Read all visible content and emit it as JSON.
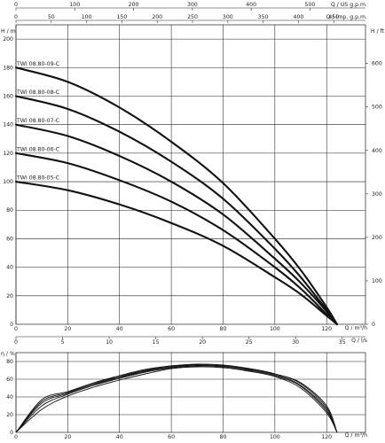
{
  "chart_data": [
    {
      "type": "line",
      "title": "",
      "x_axis_primary": {
        "label": "Q / m³/h",
        "range": [
          0,
          135
        ],
        "ticks": [
          0,
          20,
          40,
          60,
          80,
          100,
          120
        ]
      },
      "x_axis_top_usgpm": {
        "label": "Q / US g.p.m.",
        "range": [
          0,
          594.4
        ],
        "ticks": [
          0,
          100,
          200,
          300,
          400,
          500
        ]
      },
      "x_axis_top_impgpm": {
        "label": "Q / Imp. g.p.m.",
        "range": [
          0,
          494.9
        ],
        "ticks": [
          0,
          50,
          100,
          150,
          200,
          250,
          300,
          350,
          400,
          450
        ]
      },
      "x_axis_mid_ls": {
        "label": "Q / l/s",
        "range": [
          0,
          37.5
        ],
        "ticks": [
          0,
          5,
          10,
          15,
          20,
          25,
          30,
          35
        ]
      },
      "y_axis_left": {
        "label": "H / m",
        "range": [
          0,
          210
        ],
        "ticks": [
          0,
          20,
          40,
          60,
          80,
          100,
          120,
          140,
          160,
          180,
          200
        ]
      },
      "y_axis_right": {
        "label": "H / ft",
        "range": [
          0,
          689
        ],
        "ticks": [
          0,
          100,
          200,
          300,
          400,
          500,
          600
        ]
      },
      "grid": true,
      "series": [
        {
          "name": "TWI 08.80-09-C",
          "x": [
            0,
            20,
            40,
            60,
            80,
            100,
            110,
            120,
            124
          ],
          "y": [
            180,
            170,
            152,
            128,
            99,
            60,
            38,
            12,
            0
          ]
        },
        {
          "name": "TWI 08.80-08-C",
          "x": [
            0,
            20,
            40,
            60,
            80,
            100,
            110,
            120,
            124
          ],
          "y": [
            160,
            151,
            135,
            114,
            88,
            53,
            33,
            10,
            0
          ]
        },
        {
          "name": "TWI 08.80-07-C",
          "x": [
            0,
            20,
            40,
            60,
            80,
            100,
            110,
            120,
            124
          ],
          "y": [
            140,
            132,
            118,
            100,
            77,
            46,
            29,
            9,
            0
          ]
        },
        {
          "name": "TWI 08.80-06-C",
          "x": [
            0,
            20,
            40,
            60,
            80,
            100,
            110,
            120,
            124
          ],
          "y": [
            120,
            113,
            101,
            86,
            66,
            40,
            25,
            7,
            0
          ]
        },
        {
          "name": "TWI 08.80-05-C",
          "x": [
            0,
            20,
            40,
            60,
            80,
            100,
            110,
            120,
            124
          ],
          "y": [
            100,
            94,
            84,
            71,
            55,
            33,
            21,
            6,
            0
          ]
        }
      ]
    },
    {
      "type": "line",
      "title": "",
      "x_axis": {
        "label": "Q / m³/h",
        "range": [
          0,
          135
        ],
        "ticks": [
          0,
          20,
          40,
          60,
          80,
          100,
          120
        ]
      },
      "y_axis": {
        "label": "η / %",
        "range": [
          0,
          90
        ],
        "ticks": [
          0,
          20,
          40,
          60,
          80
        ]
      },
      "grid": true,
      "series": [
        {
          "x": [
            0,
            10,
            20,
            30,
            40,
            50,
            60,
            70,
            80,
            90,
            100,
            110,
            120,
            124
          ],
          "y": [
            0,
            26,
            41,
            51,
            59,
            66,
            72,
            74,
            73,
            69,
            63,
            50,
            22,
            0
          ]
        },
        {
          "x": [
            0,
            10,
            20,
            30,
            40,
            50,
            60,
            70,
            80,
            90,
            100,
            110,
            120,
            124
          ],
          "y": [
            0,
            30,
            43,
            53,
            61,
            68,
            73,
            75,
            74,
            70,
            64,
            52,
            24,
            0
          ]
        },
        {
          "x": [
            0,
            10,
            20,
            30,
            40,
            50,
            60,
            70,
            80,
            90,
            100,
            110,
            120,
            124
          ],
          "y": [
            0,
            33,
            44,
            54,
            62,
            69,
            74,
            76,
            75,
            71,
            65,
            53,
            26,
            0
          ]
        },
        {
          "x": [
            0,
            10,
            20,
            30,
            40,
            50,
            60,
            70,
            80,
            90,
            100,
            110,
            120,
            124
          ],
          "y": [
            0,
            35,
            45,
            55,
            63,
            70,
            75,
            76,
            75,
            72,
            66,
            55,
            28,
            0
          ]
        },
        {
          "x": [
            0,
            10,
            20,
            30,
            40,
            50,
            60,
            70,
            80,
            90,
            100,
            110,
            120,
            124
          ],
          "y": [
            0,
            37,
            46,
            56,
            64,
            71,
            75,
            77,
            76,
            72,
            66,
            56,
            30,
            0
          ]
        }
      ]
    }
  ]
}
